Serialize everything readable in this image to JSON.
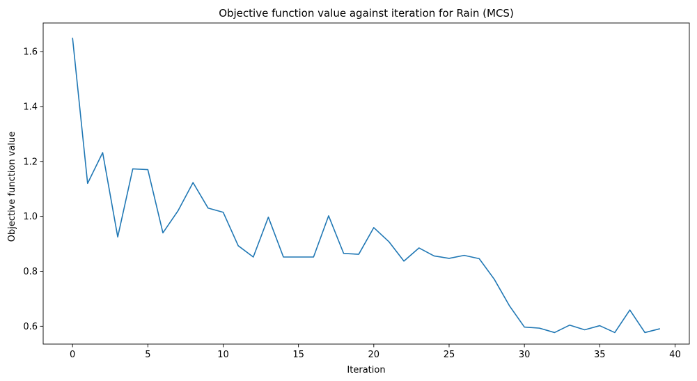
{
  "chart_data": {
    "type": "line",
    "title": "Objective function value against iteration for Rain (MCS)",
    "xlabel": "Iteration",
    "ylabel": "Objective function value",
    "xlim": [
      -1.95,
      40.95
    ],
    "ylim": [
      0.535,
      1.704
    ],
    "xticks": [
      0,
      5,
      10,
      15,
      20,
      25,
      30,
      35,
      40
    ],
    "yticks": [
      0.6,
      0.8,
      1.0,
      1.2,
      1.4,
      1.6
    ],
    "xtick_labels": [
      "0",
      "5",
      "10",
      "15",
      "20",
      "25",
      "30",
      "35",
      "40"
    ],
    "ytick_labels": [
      "0.6",
      "0.8",
      "1.0",
      "1.2",
      "1.4",
      "1.6"
    ],
    "grid": false,
    "series": [
      {
        "color": "#1f77b4",
        "x": [
          0,
          1,
          2,
          3,
          4,
          5,
          6,
          7,
          8,
          9,
          10,
          11,
          12,
          13,
          14,
          15,
          16,
          17,
          18,
          19,
          20,
          21,
          22,
          23,
          24,
          25,
          26,
          27,
          28,
          29,
          30,
          31,
          32,
          33,
          34,
          35,
          36,
          37,
          38,
          39
        ],
        "y": [
          1.65,
          1.12,
          1.232,
          0.925,
          1.173,
          1.17,
          0.94,
          1.02,
          1.123,
          1.03,
          1.015,
          0.893,
          0.852,
          0.997,
          0.852,
          0.852,
          0.852,
          1.002,
          0.865,
          0.862,
          0.959,
          0.908,
          0.837,
          0.885,
          0.856,
          0.847,
          0.858,
          0.846,
          0.771,
          0.675,
          0.597,
          0.593,
          0.577,
          0.604,
          0.587,
          0.602,
          0.577,
          0.659,
          0.577,
          0.591
        ]
      }
    ]
  }
}
